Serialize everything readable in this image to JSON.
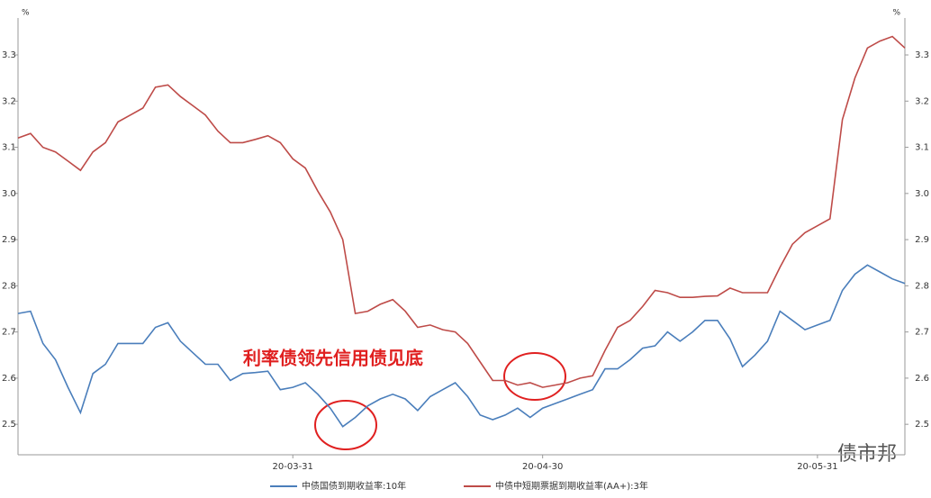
{
  "chart_data": {
    "type": "line",
    "y_unit": "%",
    "annotation": "利率债领先信用债见底",
    "watermark": "债市邦",
    "categories": [
      null,
      null,
      null,
      null,
      null,
      null,
      null,
      null,
      null,
      null,
      null,
      null,
      null,
      null,
      null,
      null,
      null,
      null,
      null,
      null,
      null,
      null,
      "20-03-31",
      null,
      null,
      null,
      null,
      null,
      null,
      null,
      null,
      null,
      null,
      null,
      null,
      null,
      null,
      null,
      null,
      null,
      null,
      null,
      "20-04-30",
      null,
      null,
      null,
      null,
      null,
      null,
      null,
      null,
      null,
      null,
      null,
      null,
      null,
      null,
      null,
      null,
      null,
      null,
      null,
      null,
      null,
      "20-05-31",
      null,
      null,
      null,
      null,
      null,
      null,
      null
    ],
    "series": [
      {
        "name": "中债国债到期收益率:10年",
        "color": "#4a7ebb",
        "values": [
          2.74,
          2.745,
          2.675,
          2.64,
          2.58,
          2.525,
          2.61,
          2.63,
          2.675,
          2.675,
          2.675,
          2.71,
          2.72,
          2.68,
          2.655,
          2.63,
          2.63,
          2.595,
          2.61,
          2.612,
          2.615,
          2.575,
          2.58,
          2.59,
          2.565,
          2.535,
          2.495,
          2.515,
          2.54,
          2.555,
          2.565,
          2.555,
          2.53,
          2.56,
          2.575,
          2.59,
          2.56,
          2.52,
          2.51,
          2.52,
          2.535,
          2.515,
          2.535,
          2.545,
          2.555,
          2.565,
          2.575,
          2.62,
          2.62,
          2.64,
          2.665,
          2.67,
          2.7,
          2.68,
          2.7,
          2.725,
          2.725,
          2.685,
          2.625,
          2.65,
          2.68,
          2.745,
          2.725,
          2.705,
          2.715,
          2.725,
          2.79,
          2.825,
          2.845,
          2.83,
          2.815,
          2.805
        ]
      },
      {
        "name": "中债中短期票据到期收益率(AA+):3年",
        "color": "#be4b48",
        "values": [
          3.12,
          3.13,
          3.1,
          3.09,
          3.07,
          3.05,
          3.09,
          3.11,
          3.155,
          3.17,
          3.185,
          3.23,
          3.235,
          3.21,
          3.19,
          3.17,
          3.135,
          3.11,
          3.11,
          3.117,
          3.125,
          3.11,
          3.075,
          3.055,
          3.005,
          2.96,
          2.9,
          2.74,
          2.745,
          2.76,
          2.77,
          2.745,
          2.71,
          2.715,
          2.705,
          2.7,
          2.675,
          2.635,
          2.595,
          2.595,
          2.585,
          2.59,
          2.58,
          2.585,
          2.59,
          2.6,
          2.605,
          2.66,
          2.71,
          2.725,
          2.755,
          2.79,
          2.785,
          2.775,
          2.775,
          2.777,
          2.778,
          2.795,
          2.785,
          2.785,
          2.785,
          2.84,
          2.89,
          2.915,
          2.93,
          2.945,
          3.16,
          3.25,
          3.315,
          3.33,
          3.34,
          3.315
        ]
      }
    ],
    "ylim": [
      2.434,
      3.38
    ],
    "yticks": [
      2.5,
      2.6,
      2.7,
      2.8,
      2.9,
      {
        "value": 3,
        "label": "3.0"
      },
      3.1,
      3.2,
      3.3
    ],
    "grid": false,
    "legend": "bottom"
  }
}
